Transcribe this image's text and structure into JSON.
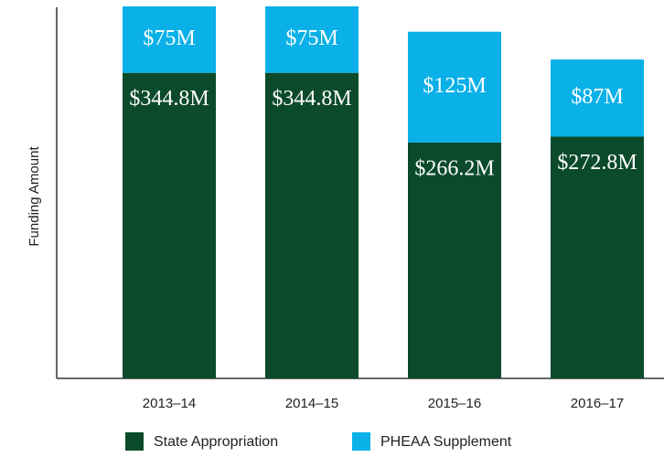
{
  "chart_data": {
    "type": "stacked_bar",
    "y_label": "Funding Amount",
    "categories": [
      "2013–14",
      "2014–15",
      "2015–16",
      "2016–17"
    ],
    "series": [
      {
        "name": "State Appropriation",
        "color": "#0b4a2b",
        "values": [
          344.8,
          344.8,
          266.2,
          272.8
        ],
        "value_labels": [
          "$344.8M",
          "$344.8M",
          "$266.2M",
          "$272.8M"
        ]
      },
      {
        "name": "PHEAA Supplement",
        "color": "#0ab0e8",
        "values": [
          75,
          75,
          125,
          87
        ],
        "value_labels": [
          "$75M",
          "$75M",
          "$125M",
          "$87M"
        ]
      }
    ],
    "ylim": [
      0,
      427
    ]
  }
}
